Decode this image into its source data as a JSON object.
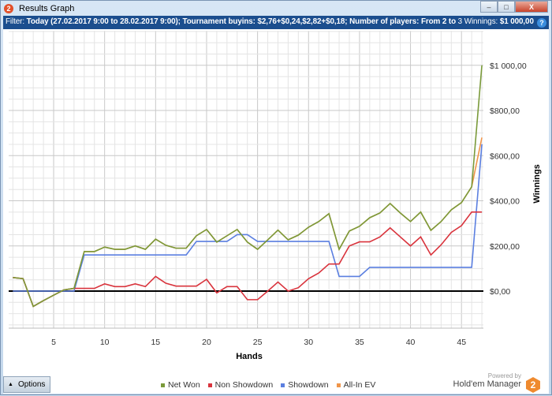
{
  "window": {
    "title": "Results Graph",
    "logo_text": "2",
    "minimize": "–",
    "maximize": "□",
    "close": "X"
  },
  "filter": {
    "label": "Filter:",
    "date": "Today (27.02.2017 9:00 to 28.02.2017 9:00);",
    "buyins_label": "Tournament buyins:",
    "buyins": "$2,76+$0,24,$2,82+$0,18;",
    "players_label": "Number of players:",
    "players": "From 2 to",
    "players_max": "3",
    "winnings_label": "Winnings:",
    "winnings": "$1 000,00",
    "help": "?"
  },
  "options_button": {
    "label": "Options",
    "icon": "triangle-up-icon"
  },
  "branding": {
    "powered": "Powered by",
    "product": "Hold'em Manager",
    "logo_text": "2"
  },
  "chart_data": {
    "type": "line",
    "xlabel": "Hands",
    "ylabel": "Winnings",
    "xlim": [
      1,
      47
    ],
    "ylim": [
      -165,
      1150
    ],
    "x_ticks": [
      5,
      10,
      15,
      20,
      25,
      30,
      35,
      40,
      45
    ],
    "y_ticks": [
      {
        "v": 0,
        "label": "$0,00"
      },
      {
        "v": 200,
        "label": "$200,00"
      },
      {
        "v": 400,
        "label": "$400,00"
      },
      {
        "v": 600,
        "label": "$600,00"
      },
      {
        "v": 800,
        "label": "$800,00"
      },
      {
        "v": 1000,
        "label": "$1 000,00"
      }
    ],
    "grid": true,
    "legend": "bottom",
    "x": [
      1,
      2,
      3,
      4,
      5,
      6,
      7,
      8,
      9,
      10,
      11,
      12,
      13,
      14,
      15,
      16,
      17,
      18,
      19,
      20,
      21,
      22,
      23,
      24,
      25,
      26,
      27,
      28,
      29,
      30,
      31,
      32,
      33,
      34,
      35,
      36,
      37,
      38,
      39,
      40,
      41,
      42,
      43,
      44,
      45,
      46,
      47
    ],
    "series": [
      {
        "name": "All-In EV",
        "color": "#f0954a",
        "values": [
          60,
          55,
          -68,
          -42,
          -18,
          5,
          12,
          175,
          175,
          195,
          185,
          185,
          200,
          185,
          230,
          203,
          190,
          190,
          245,
          273,
          217,
          245,
          273,
          217,
          185,
          227,
          270,
          227,
          248,
          283,
          308,
          343,
          185,
          266,
          287,
          325,
          346,
          388,
          346,
          308,
          350,
          269,
          308,
          360,
          392,
          462,
          680
        ]
      },
      {
        "name": "Showdown",
        "color": "#5b7fe0",
        "values": [
          0,
          0,
          0,
          0,
          0,
          0,
          0,
          160,
          160,
          160,
          160,
          160,
          160,
          160,
          160,
          160,
          160,
          160,
          220,
          220,
          220,
          220,
          250,
          250,
          220,
          220,
          220,
          220,
          220,
          220,
          220,
          220,
          65,
          65,
          65,
          105,
          105,
          105,
          105,
          105,
          105,
          105,
          105,
          105,
          105,
          105,
          650
        ]
      },
      {
        "name": "Non Showdown",
        "color": "#d9343d",
        "values": [
          60,
          55,
          -68,
          -42,
          -18,
          5,
          12,
          12,
          12,
          32,
          20,
          20,
          32,
          20,
          65,
          35,
          22,
          22,
          22,
          52,
          -8,
          20,
          20,
          -38,
          -38,
          0,
          40,
          0,
          15,
          55,
          80,
          120,
          120,
          200,
          218,
          218,
          240,
          280,
          240,
          200,
          240,
          160,
          205,
          260,
          290,
          350,
          350
        ]
      },
      {
        "name": "Net Won",
        "color": "#7a9a3a",
        "values": [
          60,
          55,
          -68,
          -42,
          -18,
          5,
          12,
          175,
          175,
          195,
          185,
          185,
          200,
          185,
          230,
          203,
          190,
          190,
          245,
          273,
          217,
          245,
          273,
          217,
          185,
          227,
          270,
          227,
          248,
          283,
          308,
          343,
          185,
          266,
          287,
          325,
          346,
          388,
          346,
          308,
          350,
          269,
          308,
          360,
          392,
          462,
          1000
        ]
      }
    ],
    "legend_order": [
      "Net Won",
      "Non Showdown",
      "Showdown",
      "All-In EV"
    ]
  }
}
